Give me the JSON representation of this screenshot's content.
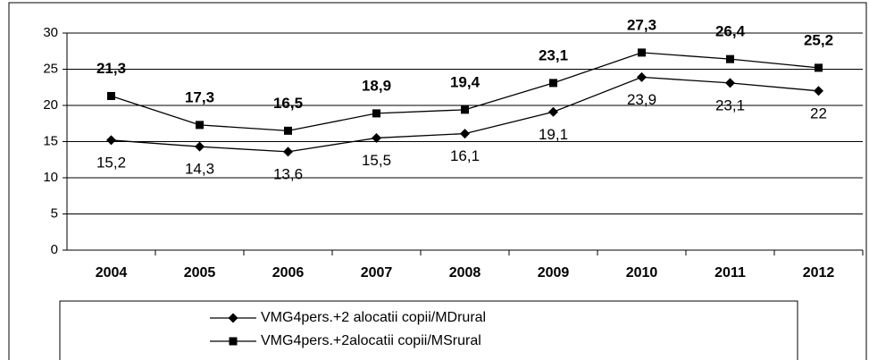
{
  "chart_data": {
    "type": "line",
    "categories": [
      "2004",
      "2005",
      "2006",
      "2007",
      "2008",
      "2009",
      "2010",
      "2011",
      "2012"
    ],
    "series": [
      {
        "name": "VMG4pers.+2 alocatii copii/MDrural",
        "color": "#000000",
        "marker": "diamond",
        "values": [
          15.2,
          14.3,
          13.6,
          15.5,
          16.1,
          19.1,
          23.9,
          23.1,
          22
        ],
        "value_labels": [
          "15,2",
          "14,3",
          "13,6",
          "15,5",
          "16,1",
          "19,1",
          "23,9",
          "23,1",
          "22"
        ]
      },
      {
        "name": "VMG4pers.+2alocatii copii/MSrural",
        "color": "#000000",
        "marker": "square",
        "values": [
          21.3,
          17.3,
          16.5,
          18.9,
          19.4,
          23.1,
          27.3,
          26.4,
          25.2
        ],
        "value_labels": [
          "21,3",
          "17,3",
          "16,5",
          "18,9",
          "19,4",
          "23,1",
          "27,3",
          "26,4",
          "25,2"
        ]
      }
    ],
    "ylim": [
      0,
      30
    ],
    "yticks": [
      0,
      5,
      10,
      15,
      20,
      25,
      30
    ],
    "grid": true,
    "legend": "bottom"
  }
}
